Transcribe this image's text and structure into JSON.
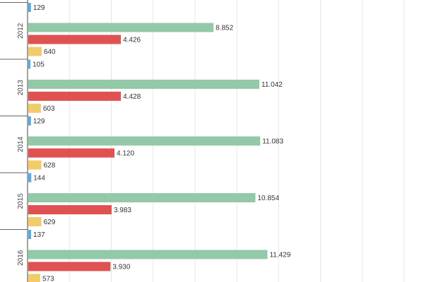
{
  "chart_data": {
    "type": "bar",
    "orientation": "horizontal",
    "grid": true,
    "xlim": [
      0,
      20000
    ],
    "categories": [
      "",
      "2012",
      "2013",
      "2014",
      "2015",
      "2016"
    ],
    "series": [
      {
        "color": "#93c9a8",
        "values": [
          null,
          8852,
          11042,
          11083,
          10854,
          11429
        ],
        "labels": [
          "",
          "8.852",
          "11.042",
          "11.083",
          "10.854",
          "11.429"
        ]
      },
      {
        "color": "#e05252",
        "values": [
          null,
          4426,
          4428,
          4120,
          3983,
          3930
        ],
        "labels": [
          "",
          "4.426",
          "4.428",
          "4.120",
          "3.983",
          "3.930"
        ]
      },
      {
        "color": "#f2cc6b",
        "values": [
          null,
          640,
          603,
          628,
          629,
          573
        ],
        "labels": [
          "",
          "640",
          "603",
          "628",
          "629",
          "573"
        ]
      },
      {
        "color": "#5aa9e0",
        "values": [
          129,
          105,
          129,
          144,
          137,
          null
        ],
        "labels": [
          "129",
          "105",
          "129",
          "144",
          "137",
          ""
        ]
      }
    ]
  }
}
